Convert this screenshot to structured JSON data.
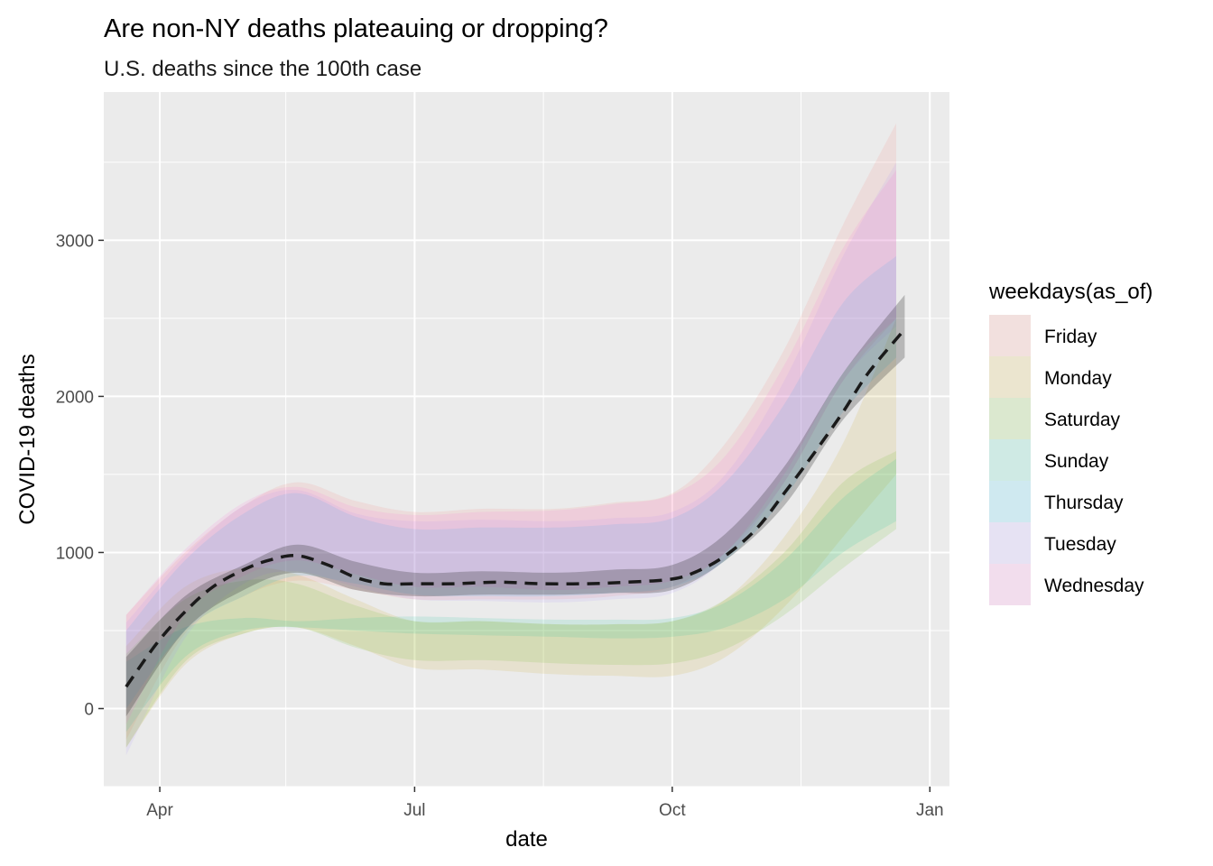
{
  "chart_data": {
    "type": "area",
    "title": "Are non-NY deaths plateauing or dropping?",
    "subtitle": "U.S. deaths since the 100th case",
    "xlabel": "date",
    "ylabel": "COVID-19 deaths",
    "xlim": [
      "2020-03-12",
      "2021-01-08"
    ],
    "ylim": [
      -500,
      3950
    ],
    "x_ticks": [
      {
        "label": "Apr",
        "value": "2020-04-01"
      },
      {
        "label": "Jul",
        "value": "2020-07-01"
      },
      {
        "label": "Oct",
        "value": "2020-10-01"
      },
      {
        "label": "Jan",
        "value": "2021-01-01"
      }
    ],
    "y_ticks": [
      0,
      1000,
      2000,
      3000
    ],
    "grid": true,
    "legend": {
      "title": "weekdays(as_of)",
      "position": "right"
    },
    "x": [
      "2020-03-20",
      "2020-04-10",
      "2020-05-01",
      "2020-05-20",
      "2020-06-10",
      "2020-07-01",
      "2020-07-25",
      "2020-08-20",
      "2020-09-10",
      "2020-10-01",
      "2020-10-20",
      "2020-11-10",
      "2020-12-01",
      "2020-12-20"
    ],
    "series": [
      {
        "name": "Friday",
        "color": "#F8766D",
        "lower": [
          -200,
          480,
          720,
          820,
          760,
          700,
          700,
          700,
          720,
          780,
          1000,
          1450,
          2100,
          2500
        ],
        "upper": [
          600,
          1000,
          1300,
          1450,
          1330,
          1260,
          1280,
          1280,
          1320,
          1380,
          1700,
          2300,
          3100,
          3750
        ]
      },
      {
        "name": "Monday",
        "color": "#C49A00",
        "lower": [
          -250,
          280,
          480,
          520,
          400,
          260,
          250,
          220,
          210,
          210,
          330,
          650,
          1100,
          1500
        ],
        "upper": [
          400,
          780,
          900,
          860,
          700,
          560,
          560,
          540,
          540,
          560,
          700,
          1100,
          1700,
          2500
        ]
      },
      {
        "name": "Saturday",
        "color": "#53B400",
        "lower": [
          -250,
          300,
          480,
          520,
          390,
          310,
          310,
          290,
          280,
          290,
          380,
          600,
          900,
          1150
        ],
        "upper": [
          350,
          700,
          820,
          800,
          660,
          560,
          560,
          540,
          540,
          560,
          700,
          1000,
          1450,
          1650
        ]
      },
      {
        "name": "Sunday",
        "color": "#00C094",
        "lower": [
          -150,
          330,
          500,
          520,
          500,
          480,
          470,
          460,
          450,
          460,
          520,
          700,
          1000,
          1200
        ],
        "upper": [
          300,
          520,
          580,
          560,
          580,
          590,
          580,
          570,
          570,
          580,
          680,
          950,
          1350,
          1600
        ]
      },
      {
        "name": "Thursday",
        "color": "#00B6EB",
        "lower": [
          0,
          500,
          720,
          850,
          800,
          730,
          720,
          720,
          740,
          780,
          950,
          1350,
          1900,
          2250
        ],
        "upper": [
          500,
          950,
          1250,
          1380,
          1230,
          1150,
          1160,
          1160,
          1180,
          1220,
          1450,
          1950,
          2600,
          2900
        ]
      },
      {
        "name": "Tuesday",
        "color": "#A58AFF",
        "lower": [
          -300,
          450,
          800,
          880,
          780,
          700,
          690,
          680,
          700,
          740,
          960,
          1450,
          2100,
          2450
        ],
        "upper": [
          550,
          980,
          1300,
          1400,
          1250,
          1200,
          1210,
          1200,
          1220,
          1260,
          1500,
          2100,
          2900,
          3500
        ]
      },
      {
        "name": "Wednesday",
        "color": "#FB61D7",
        "lower": [
          -100,
          600,
          850,
          950,
          860,
          780,
          780,
          760,
          780,
          820,
          1000,
          1500,
          2150,
          2500
        ],
        "upper": [
          600,
          1020,
          1320,
          1420,
          1290,
          1240,
          1260,
          1270,
          1310,
          1370,
          1620,
          2200,
          2950,
          3450
        ]
      }
    ],
    "overall_band": {
      "x": [
        "2020-03-20",
        "2020-04-10",
        "2020-05-01",
        "2020-05-20",
        "2020-06-10",
        "2020-07-01",
        "2020-07-25",
        "2020-08-20",
        "2020-09-10",
        "2020-10-01",
        "2020-10-20",
        "2020-11-10",
        "2020-12-01",
        "2020-12-23"
      ],
      "lower": [
        -50,
        500,
        760,
        870,
        760,
        720,
        730,
        730,
        740,
        760,
        950,
        1300,
        1850,
        2250
      ],
      "upper": [
        330,
        720,
        920,
        1050,
        940,
        870,
        880,
        870,
        890,
        920,
        1120,
        1550,
        2150,
        2650
      ]
    },
    "fitted_line": {
      "style": "dashed",
      "x": [
        "2020-03-20",
        "2020-03-31",
        "2020-04-10",
        "2020-04-20",
        "2020-05-01",
        "2020-05-10",
        "2020-05-20",
        "2020-05-31",
        "2020-06-10",
        "2020-06-20",
        "2020-07-01",
        "2020-07-15",
        "2020-07-31",
        "2020-08-15",
        "2020-08-31",
        "2020-09-15",
        "2020-10-01",
        "2020-10-10",
        "2020-10-20",
        "2020-10-31",
        "2020-11-10",
        "2020-11-20",
        "2020-12-01",
        "2020-12-10",
        "2020-12-23"
      ],
      "y": [
        140,
        420,
        620,
        780,
        890,
        950,
        980,
        920,
        840,
        800,
        800,
        800,
        810,
        800,
        800,
        810,
        830,
        880,
        980,
        1150,
        1380,
        1620,
        1900,
        2150,
        2430
      ]
    }
  }
}
